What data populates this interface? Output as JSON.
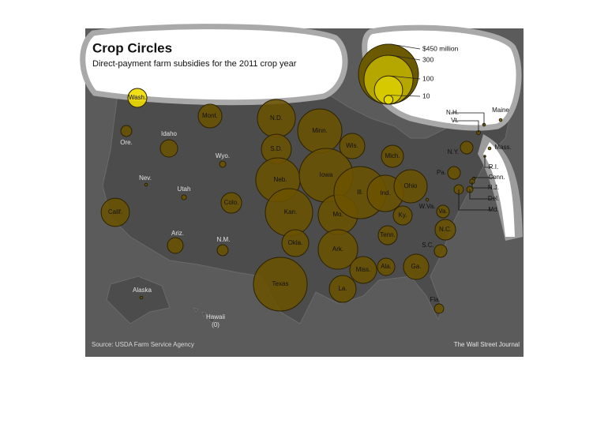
{
  "header": {
    "title": "Crop Circles",
    "subtitle": "Direct-payment farm subsidies for the 2011 crop year"
  },
  "legend": {
    "items": [
      {
        "value": 450,
        "label": "$450 million"
      },
      300,
      100,
      10
    ]
  },
  "states": [
    {
      "name": "Wash.",
      "value": 45
    },
    {
      "name": "Mont.",
      "value": 70
    },
    {
      "name": "Ore.",
      "value": 15
    },
    {
      "name": "Idaho",
      "value": 38
    },
    {
      "name": "Wyo.",
      "value": 5
    },
    {
      "name": "Calif.",
      "value": 100
    },
    {
      "name": "Nev.",
      "value": 1
    },
    {
      "name": "Utah",
      "value": 3
    },
    {
      "name": "Colo.",
      "value": 53
    },
    {
      "name": "Ariz.",
      "value": 31
    },
    {
      "name": "N.M.",
      "value": 15
    },
    {
      "name": "N.D.",
      "value": 180
    },
    {
      "name": "S.D.",
      "value": 112
    },
    {
      "name": "Neb.",
      "value": 245
    },
    {
      "name": "Kan.",
      "value": 280
    },
    {
      "name": "Okla.",
      "value": 90
    },
    {
      "name": "Texas",
      "value": 360
    },
    {
      "name": "Minn.",
      "value": 245
    },
    {
      "name": "Iowa",
      "value": 360
    },
    {
      "name": "Mo.",
      "value": 195
    },
    {
      "name": "Ark.",
      "value": 195
    },
    {
      "name": "La.",
      "value": 90
    },
    {
      "name": "Wis.",
      "value": 80
    },
    {
      "name": "Ill.",
      "value": 340
    },
    {
      "name": "Ind.",
      "value": 165
    },
    {
      "name": "Ohio",
      "value": 137
    },
    {
      "name": "Mich.",
      "value": 61
    },
    {
      "name": "Ky.",
      "value": 45
    },
    {
      "name": "Tenn.",
      "value": 45
    },
    {
      "name": "Miss.",
      "value": 90
    },
    {
      "name": "Ala.",
      "value": 38
    },
    {
      "name": "Ga.",
      "value": 80
    },
    {
      "name": "Fla.",
      "value": 11
    },
    {
      "name": "S.C.",
      "value": 20
    },
    {
      "name": "N.C.",
      "value": 53
    },
    {
      "name": "Va.",
      "value": 20
    },
    {
      "name": "W.Va.",
      "value": 1
    },
    {
      "name": "Pa.",
      "value": 20
    },
    {
      "name": "N.Y.",
      "value": 20
    },
    {
      "name": "Md.",
      "value": 11
    },
    {
      "name": "Del.",
      "value": 5
    },
    {
      "name": "N.J.",
      "value": 3
    },
    {
      "name": "Conn.",
      "value": 1
    },
    {
      "name": "R.I.",
      "value": 0.5
    },
    {
      "name": "Mass.",
      "value": 1
    },
    {
      "name": "Vt.",
      "value": 2
    },
    {
      "name": "N.H.",
      "value": 1
    },
    {
      "name": "Maine",
      "value": 1
    },
    {
      "name": "Alaska",
      "value": 1
    },
    {
      "name": "Hawaii",
      "value": 0,
      "value_label": "(0)"
    }
  ],
  "source": "Source: USDA Farm Service Agency",
  "credit": "The Wall Street Journal"
}
